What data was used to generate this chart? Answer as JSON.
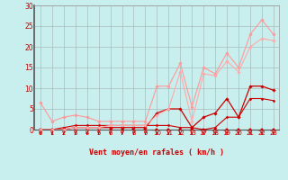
{
  "background_color": "#c8eeed",
  "grid_color": "#aabbbb",
  "xlabel": "Vent moyen/en rafales ( km/h )",
  "ylim": [
    0,
    30
  ],
  "yticks": [
    0,
    5,
    10,
    15,
    20,
    25,
    30
  ],
  "hour_labels": [
    "0",
    "1",
    "2",
    "3",
    "4",
    "5",
    "6",
    "7",
    "8",
    "9",
    "10",
    "11",
    "12",
    "13",
    "17",
    "18",
    "19",
    "20",
    "21",
    "22",
    "23"
  ],
  "series": [
    {
      "y": [
        0,
        0,
        0,
        0,
        0,
        0,
        0,
        0,
        0,
        0,
        0,
        0,
        0,
        0,
        0,
        0,
        0,
        0,
        0,
        0,
        0
      ],
      "color": "#cc0000",
      "lw": 0.7,
      "marker": "s",
      "ms": 1.5
    },
    {
      "y": [
        0,
        0,
        0,
        0,
        0,
        0,
        0,
        0,
        0,
        0,
        0,
        0,
        0,
        0,
        0,
        0,
        0,
        0,
        0,
        0,
        0
      ],
      "color": "#cc0000",
      "lw": 0.7,
      "marker": "s",
      "ms": 1.5
    },
    {
      "y": [
        6.5,
        2.0,
        3.0,
        3.5,
        3.0,
        2.0,
        2.0,
        2.0,
        2.0,
        2.0,
        10.5,
        10.5,
        16.0,
        5.5,
        15.0,
        13.5,
        18.5,
        15.0,
        23.0,
        26.5,
        23.0
      ],
      "color": "#ff9999",
      "lw": 0.8,
      "marker": "D",
      "ms": 1.8
    },
    {
      "y": [
        0,
        0,
        0,
        0.5,
        0.5,
        0.5,
        0.5,
        0.5,
        0.5,
        0.5,
        4.0,
        5.0,
        5.0,
        0.5,
        3.0,
        4.0,
        7.5,
        3.0,
        10.5,
        10.5,
        9.5
      ],
      "color": "#cc0000",
      "lw": 0.9,
      "marker": "D",
      "ms": 1.8
    },
    {
      "y": [
        0,
        0,
        0.5,
        1.0,
        1.0,
        1.0,
        1.0,
        1.0,
        1.0,
        1.0,
        1.0,
        1.0,
        0.5,
        0.5,
        0.0,
        0.5,
        3.0,
        3.0,
        7.5,
        7.5,
        7.0
      ],
      "color": "#cc0000",
      "lw": 0.8,
      "marker": "D",
      "ms": 1.5
    },
    {
      "y": [
        0,
        0,
        0,
        0.5,
        0.5,
        0.5,
        1.0,
        1.0,
        1.0,
        1.0,
        3.5,
        5.0,
        14.0,
        2.0,
        13.5,
        13.0,
        16.5,
        14.0,
        20.0,
        22.0,
        21.5
      ],
      "color": "#ffaaaa",
      "lw": 0.8,
      "marker": "D",
      "ms": 1.8
    }
  ],
  "arrow_indices": [
    0,
    1,
    2,
    3,
    4,
    5,
    6,
    7,
    8,
    9,
    10,
    11,
    12,
    13,
    14,
    15,
    16,
    17,
    18,
    19,
    20
  ],
  "arrow_color": "#cc0000"
}
